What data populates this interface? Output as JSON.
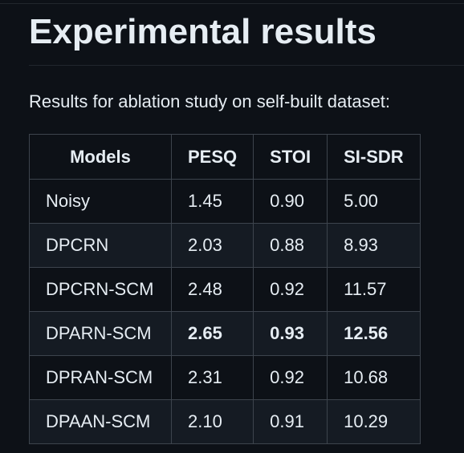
{
  "page": {
    "heading": "Experimental results",
    "intro": "Results for ablation study on self-built dataset:"
  },
  "table": {
    "headers": [
      "Models",
      "PESQ",
      "STOI",
      "SI-SDR"
    ],
    "rows": [
      {
        "model": "Noisy",
        "pesq": "1.45",
        "stoi": "0.90",
        "sisdr": "5.00"
      },
      {
        "model": "DPCRN",
        "pesq": "2.03",
        "stoi": "0.88",
        "sisdr": "8.93"
      },
      {
        "model": "DPCRN-SCM",
        "pesq": "2.48",
        "stoi": "0.92",
        "sisdr": "11.57"
      },
      {
        "model": "DPARN-SCM",
        "pesq": "2.65",
        "stoi": "0.93",
        "sisdr": "12.56",
        "bold": true
      },
      {
        "model": "DPRAN-SCM",
        "pesq": "2.31",
        "stoi": "0.92",
        "sisdr": "10.68"
      },
      {
        "model": "DPAAN-SCM",
        "pesq": "2.10",
        "stoi": "0.91",
        "sisdr": "10.29"
      }
    ]
  },
  "colors": {
    "background": "#0d1117",
    "text": "#e6edf3",
    "border": "#3d444d",
    "stripe": "#151b23"
  }
}
